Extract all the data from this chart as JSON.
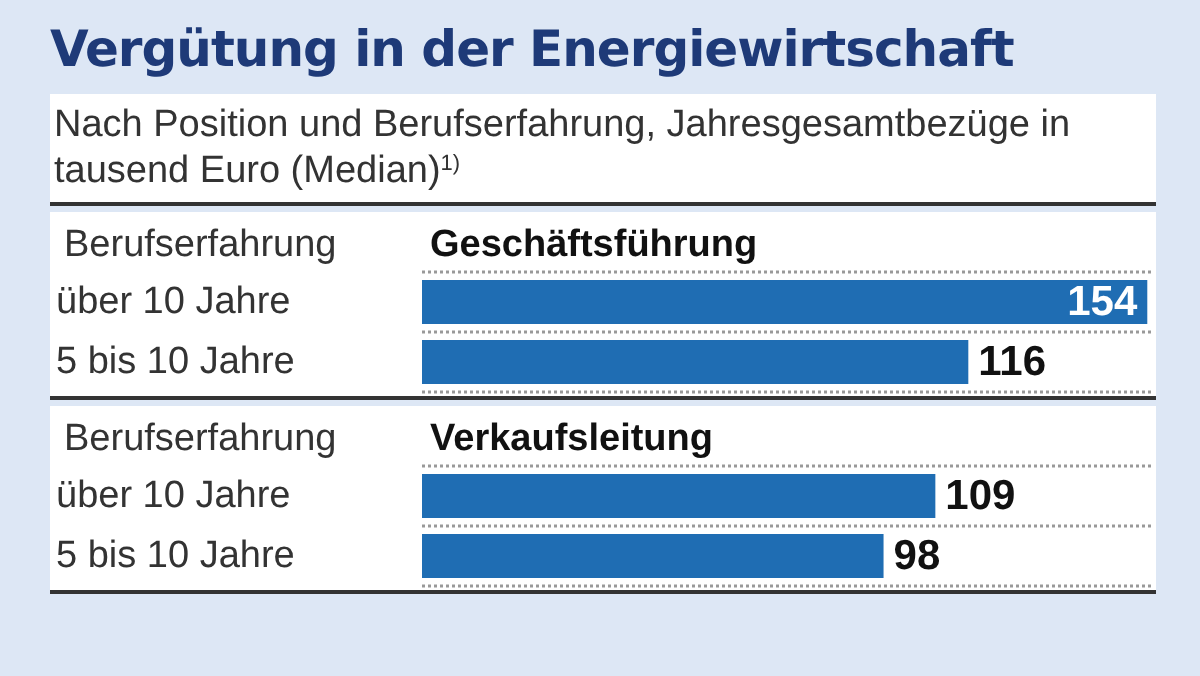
{
  "chart_data": [
    {
      "type": "other",
      "title": "Vergütung in der Energiewirtschaft",
      "subtitle": "Nach Position und Berufserfahrung, Jahresgesamtbezüge in tausend Euro (Median)$^{1)}$"
    },
    {
      "type": "bar",
      "orientation": "horizontal",
      "title": "Geschäftsführung",
      "ylabel": "Berufserfahrung",
      "categories": [
        "über 10 Jahre",
        "5 bis 10 Jahre"
      ],
      "values": [
        154,
        116
      ],
      "color": "#1f6db3",
      "data_labels": true,
      "xlim": [
        0,
        155
      ],
      "grid": "y",
      "tick_labels": "y"
    },
    {
      "type": "bar",
      "orientation": "horizontal",
      "title": "Verkaufsleitung",
      "ylabel": "Berufserfahrung",
      "categories": [
        "über 10 Jahre",
        "5 bis 10 Jahre"
      ],
      "values": [
        109,
        98
      ],
      "color": "#1f6db3",
      "data_labels": true,
      "xlim": [
        0,
        155
      ],
      "grid": "y",
      "tick_labels": "y"
    }
  ]
}
